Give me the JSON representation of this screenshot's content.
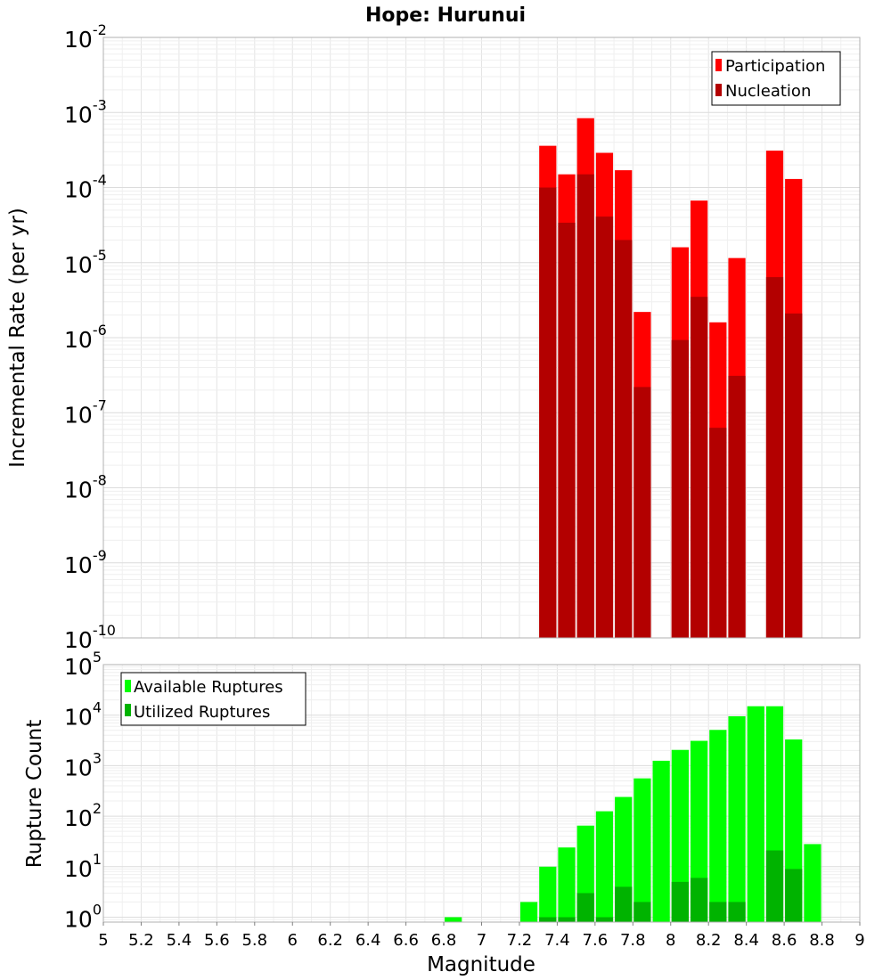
{
  "chart_data": [
    {
      "type": "bar",
      "title": "Hope: Hurunui",
      "xlabel": "",
      "ylabel": "Incremental Rate (per yr)",
      "yscale": "log",
      "xlim": [
        5,
        9
      ],
      "ylim": [
        1e-10,
        0.01
      ],
      "ytick_labels": [
        {
          "base": "10",
          "exp": "-10"
        },
        {
          "base": "10",
          "exp": "-9"
        },
        {
          "base": "10",
          "exp": "-8"
        },
        {
          "base": "10",
          "exp": "-7"
        },
        {
          "base": "10",
          "exp": "-6"
        },
        {
          "base": "10",
          "exp": "-5"
        },
        {
          "base": "10",
          "exp": "-4"
        },
        {
          "base": "10",
          "exp": "-3"
        },
        {
          "base": "10",
          "exp": "-2"
        }
      ],
      "legend": {
        "placement": "top-right",
        "entries": [
          "Participation",
          "Nucleation"
        ]
      },
      "grid": true,
      "x": [
        7.35,
        7.45,
        7.55,
        7.65,
        7.75,
        7.85,
        8.05,
        8.15,
        8.25,
        8.35,
        8.55,
        8.65
      ],
      "series": [
        {
          "name": "Participation",
          "color": "#ff0000",
          "values": [
            0.00036,
            0.00015,
            0.00084,
            0.00029,
            0.00017,
            2.2e-06,
            1.6e-05,
            6.7e-05,
            1.6e-06,
            1.15e-05,
            0.00031,
            0.00013
          ]
        },
        {
          "name": "Nucleation",
          "color": "#b30000",
          "values": [
            0.0001,
            3.4e-05,
            0.00015,
            4.1e-05,
            2e-05,
            2.2e-07,
            9.3e-07,
            3.5e-06,
            6.3e-08,
            3.1e-07,
            6.4e-06,
            2.1e-06
          ]
        }
      ]
    },
    {
      "type": "bar",
      "title": "",
      "xlabel": "Magnitude",
      "ylabel": "Rupture Count",
      "yscale": "log",
      "xlim": [
        5,
        9
      ],
      "ylim": [
        0.8,
        100000.0
      ],
      "xtick_labels": [
        "5",
        "5.2",
        "5.4",
        "5.6",
        "5.8",
        "6",
        "6.2",
        "6.4",
        "6.6",
        "6.8",
        "7",
        "7.2",
        "7.4",
        "7.6",
        "7.8",
        "8",
        "8.2",
        "8.4",
        "8.6",
        "8.8",
        "9"
      ],
      "ytick_labels": [
        {
          "base": "10",
          "exp": "0"
        },
        {
          "base": "10",
          "exp": "1"
        },
        {
          "base": "10",
          "exp": "2"
        },
        {
          "base": "10",
          "exp": "3"
        },
        {
          "base": "10",
          "exp": "4"
        },
        {
          "base": "10",
          "exp": "5"
        }
      ],
      "legend": {
        "placement": "top-left",
        "entries": [
          "Available Ruptures",
          "Utilized Ruptures"
        ]
      },
      "grid": true,
      "x": [
        6.85,
        7.25,
        7.35,
        7.45,
        7.55,
        7.65,
        7.75,
        7.85,
        7.95,
        8.05,
        8.15,
        8.25,
        8.35,
        8.45,
        8.55,
        8.65,
        8.75
      ],
      "series": [
        {
          "name": "Available Ruptures",
          "color": "#00ff00",
          "values": [
            1,
            2,
            10,
            24,
            65,
            125,
            240,
            560,
            1250,
            2050,
            3100,
            5100,
            9500,
            15000,
            15000,
            3300,
            28
          ]
        },
        {
          "name": "Utilized Ruptures",
          "color": "#00b300",
          "values": [
            0,
            0,
            1,
            1,
            3,
            1,
            4,
            2,
            0,
            5,
            6,
            2,
            2,
            0,
            21,
            9,
            0
          ]
        }
      ]
    }
  ]
}
